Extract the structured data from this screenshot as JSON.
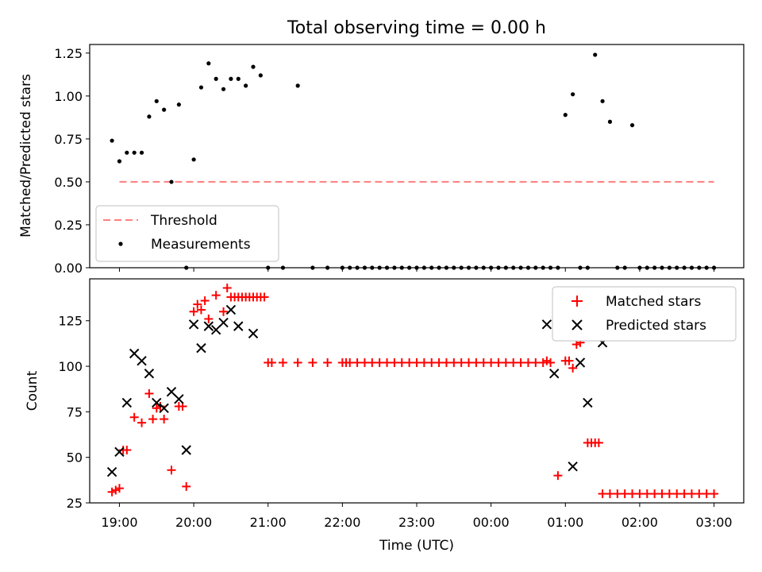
{
  "chart_data": [
    {
      "type": "scatter",
      "title": "Total observing time = 0.00 h",
      "ylabel": "Matched/Predicted stars",
      "xlabel": "",
      "xlim": [
        "18:36",
        "03:24"
      ],
      "ylim": [
        0,
        1.3
      ],
      "yticks": [
        "0.00",
        "0.25",
        "0.50",
        "0.75",
        "1.00",
        "1.25"
      ],
      "xticks": [],
      "legend_position": "lower-left",
      "threshold": {
        "name": "Threshold",
        "value": 0.5,
        "from": "19:00",
        "to": "03:00",
        "color": "#ff7f7f"
      },
      "series": [
        {
          "name": "Measurements",
          "marker": "dot",
          "color": "#000000",
          "x": [
            "18:54",
            "19:00",
            "19:06",
            "19:12",
            "19:18",
            "19:24",
            "19:30",
            "19:36",
            "19:42",
            "19:48",
            "19:54",
            "20:00",
            "20:06",
            "20:12",
            "20:18",
            "20:24",
            "20:30",
            "20:36",
            "20:42",
            "20:48",
            "20:54",
            "21:00",
            "21:12",
            "21:24",
            "21:36",
            "21:48",
            "22:00",
            "22:06",
            "22:12",
            "22:18",
            "22:24",
            "22:30",
            "22:36",
            "22:42",
            "22:48",
            "22:54",
            "23:00",
            "23:06",
            "23:12",
            "23:18",
            "23:24",
            "23:30",
            "23:36",
            "23:42",
            "23:48",
            "23:54",
            "00:00",
            "00:06",
            "00:12",
            "00:18",
            "00:24",
            "00:30",
            "00:36",
            "00:42",
            "00:48",
            "00:54",
            "01:00",
            "01:06",
            "01:12",
            "01:18",
            "01:24",
            "01:30",
            "01:36",
            "01:42",
            "01:48",
            "01:54",
            "02:00",
            "02:06",
            "02:12",
            "02:18",
            "02:24",
            "02:30",
            "02:36",
            "02:42",
            "02:48",
            "02:54",
            "03:00"
          ],
          "y": [
            0.74,
            0.62,
            0.67,
            0.67,
            0.67,
            0.88,
            0.97,
            0.92,
            0.5,
            0.95,
            0.0,
            0.63,
            1.05,
            1.19,
            1.1,
            1.04,
            1.1,
            1.1,
            1.06,
            1.17,
            1.12,
            0.0,
            0.0,
            1.06,
            0.0,
            0.0,
            0.0,
            0.0,
            0.0,
            0.0,
            0.0,
            0.0,
            0.0,
            0.0,
            0.0,
            0.0,
            0.0,
            0.0,
            0.0,
            0.0,
            0.0,
            0.0,
            0.0,
            0.0,
            0.0,
            0.0,
            0.0,
            0.0,
            0.0,
            0.0,
            0.0,
            0.0,
            0.0,
            0.0,
            0.0,
            0.0,
            0.89,
            1.01,
            0.0,
            0.0,
            1.24,
            0.97,
            0.85,
            0.0,
            0.0,
            0.83,
            0.0,
            0.0,
            0.0,
            0.0,
            0.0,
            0.0,
            0.0,
            0.0,
            0.0,
            0.0,
            0.0
          ]
        }
      ]
    },
    {
      "type": "scatter",
      "title": "",
      "ylabel": "Count",
      "xlabel": "Time (UTC)",
      "xlim": [
        "18:36",
        "03:24"
      ],
      "ylim": [
        25,
        148
      ],
      "yticks": [
        "25",
        "50",
        "75",
        "100",
        "125"
      ],
      "xticks": [
        "19:00",
        "20:00",
        "21:00",
        "22:00",
        "23:00",
        "00:00",
        "01:00",
        "02:00",
        "03:00"
      ],
      "legend_position": "upper-right",
      "series": [
        {
          "name": "Matched stars",
          "marker": "plus",
          "color": "#ff0000",
          "x": [
            "18:54",
            "19:00",
            "19:06",
            "19:12",
            "19:18",
            "19:24",
            "19:30",
            "19:36",
            "19:42",
            "19:48",
            "19:54",
            "20:00",
            "20:06",
            "20:12",
            "20:18",
            "20:24",
            "20:30",
            "20:36",
            "20:42",
            "20:48",
            "20:54",
            "21:00",
            "21:12",
            "21:24",
            "21:36",
            "21:48",
            "22:00",
            "22:06",
            "22:12",
            "22:18",
            "22:24",
            "22:30",
            "22:36",
            "22:42",
            "22:48",
            "22:54",
            "23:00",
            "23:06",
            "23:12",
            "23:18",
            "23:24",
            "23:30",
            "23:36",
            "23:42",
            "23:48",
            "23:54",
            "00:00",
            "00:06",
            "00:12",
            "00:18",
            "00:24",
            "00:30",
            "00:36",
            "00:42",
            "00:48",
            "00:54",
            "01:00",
            "01:06",
            "01:12",
            "01:18",
            "01:24",
            "01:30",
            "01:36",
            "01:42",
            "01:48",
            "01:54",
            "02:00",
            "02:06",
            "02:12",
            "02:18",
            "02:24",
            "02:30",
            "02:36",
            "02:42",
            "02:48",
            "02:54",
            "03:00",
            "18:57",
            "19:03",
            "19:27",
            "19:33",
            "19:51",
            "20:03",
            "20:09",
            "20:27",
            "20:33",
            "20:39",
            "20:45",
            "20:51",
            "20:57",
            "21:03",
            "22:03",
            "00:45",
            "01:03",
            "01:09",
            "01:21",
            "01:27"
          ],
          "y": [
            31,
            33,
            54,
            72,
            69,
            85,
            77,
            71,
            43,
            78,
            34,
            130,
            131,
            126,
            139,
            130,
            138,
            138,
            138,
            138,
            138,
            102,
            102,
            102,
            102,
            102,
            102,
            102,
            102,
            102,
            102,
            102,
            102,
            102,
            102,
            102,
            102,
            102,
            102,
            102,
            102,
            102,
            102,
            102,
            102,
            102,
            102,
            102,
            102,
            102,
            102,
            102,
            102,
            102,
            102,
            40,
            103,
            99,
            113,
            58,
            58,
            30,
            30,
            30,
            30,
            30,
            30,
            30,
            30,
            30,
            30,
            30,
            30,
            30,
            30,
            30,
            30,
            32,
            54,
            71,
            78,
            78,
            134,
            136,
            143,
            138,
            138,
            138,
            138,
            138,
            102,
            102,
            103,
            103,
            112,
            58,
            58
          ]
        },
        {
          "name": "Predicted stars",
          "marker": "x",
          "color": "#000000",
          "x": [
            "18:54",
            "19:00",
            "19:06",
            "19:12",
            "19:18",
            "19:24",
            "19:30",
            "19:36",
            "19:42",
            "19:48",
            "19:54",
            "20:00",
            "20:06",
            "20:12",
            "20:18",
            "20:24",
            "20:30",
            "20:36",
            "20:48",
            "00:45",
            "00:51",
            "01:06",
            "01:12",
            "01:18",
            "01:30"
          ],
          "y": [
            42,
            53,
            80,
            107,
            103,
            96,
            80,
            77,
            86,
            82,
            54,
            123,
            110,
            122,
            120,
            124,
            131,
            122,
            118,
            123,
            96,
            45,
            102,
            80,
            113
          ]
        }
      ]
    }
  ]
}
